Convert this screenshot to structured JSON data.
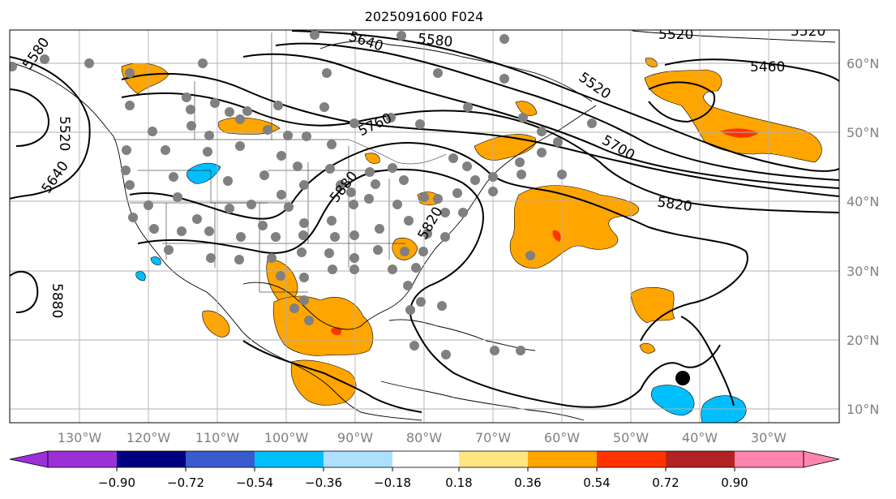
{
  "title": "2025091600 F024",
  "map": {
    "lon_labels": [
      "130°W",
      "120°W",
      "110°W",
      "100°W",
      "90°W",
      "80°W",
      "70°W",
      "60°W",
      "50°W",
      "40°W",
      "30°W"
    ],
    "lat_labels": [
      "60°N",
      "50°N",
      "40°N",
      "30°N",
      "20°N",
      "10°N"
    ],
    "contour_labels": {
      "c5580_left": "5580",
      "c5640_top": "5640",
      "c5580_top": "5580",
      "c5520_top": "5520",
      "c5520_topright": "5520",
      "c5460": "5460",
      "c5520_right": "5520",
      "c5760": "5760",
      "c5700": "5700",
      "c5880_mid": "5880",
      "c5820": "5820",
      "c5820_sw": "5820",
      "c5520_left": "5520",
      "c5640_left": "5640",
      "c5880_left": "5880"
    },
    "colors": {
      "contour": "#000000",
      "grid": "#b0b0b0",
      "station_dot": "#808080",
      "land_outline": "#000000"
    }
  },
  "colorbar": {
    "tick_labels": [
      "−0.90",
      "−0.72",
      "−0.54",
      "−0.36",
      "−0.18",
      "0.18",
      "0.36",
      "0.54",
      "0.72",
      "0.90"
    ],
    "colors": [
      "#9b30d9",
      "#000080",
      "#3a5bcd",
      "#00bfff",
      "#addfff",
      "#ffffff",
      "#ffe680",
      "#ffa500",
      "#ff3300",
      "#b22222",
      "#ff85b0"
    ]
  }
}
